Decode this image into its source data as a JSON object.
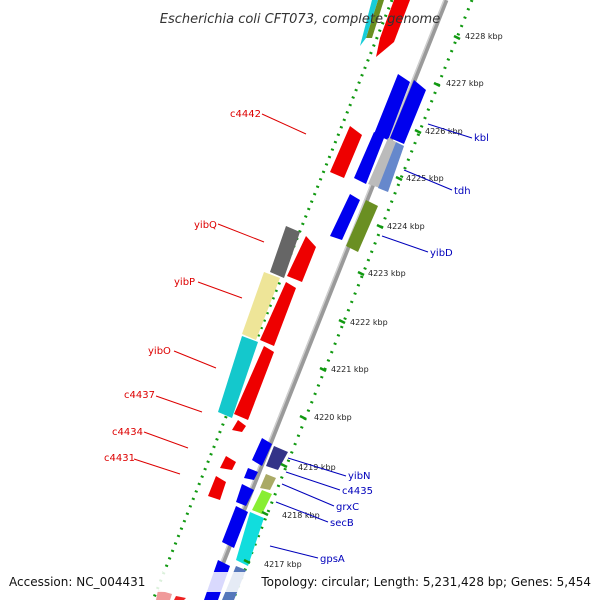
{
  "title": "Escherichia coli CFT073, complete genome",
  "footer": {
    "accession": "Accession: NC_004431",
    "topology": "Topology: circular; Length: 5,231,428 bp; Genes: 5,454"
  },
  "colors": {
    "reverse_strand_label": "#dd0000",
    "forward_strand_label": "#0000bb",
    "backbone": "#999999",
    "dotted_rule": "#119911"
  },
  "scale_ticks": [
    "4228 kbp",
    "4227 kbp",
    "4226 kbp",
    "4225 kbp",
    "4224 kbp",
    "4223 kbp",
    "4222 kbp",
    "4221 kbp",
    "4220 kbp",
    "4219 kbp",
    "4218 kbp",
    "4217 kbp"
  ],
  "reverse_labels": [
    "c4442",
    "yibQ",
    "yibP",
    "yibO",
    "c4437",
    "c4434",
    "c4431"
  ],
  "forward_labels": [
    "kbl",
    "tdh",
    "yibD",
    "yibN",
    "c4435",
    "grxC",
    "secB",
    "gpsA"
  ]
}
